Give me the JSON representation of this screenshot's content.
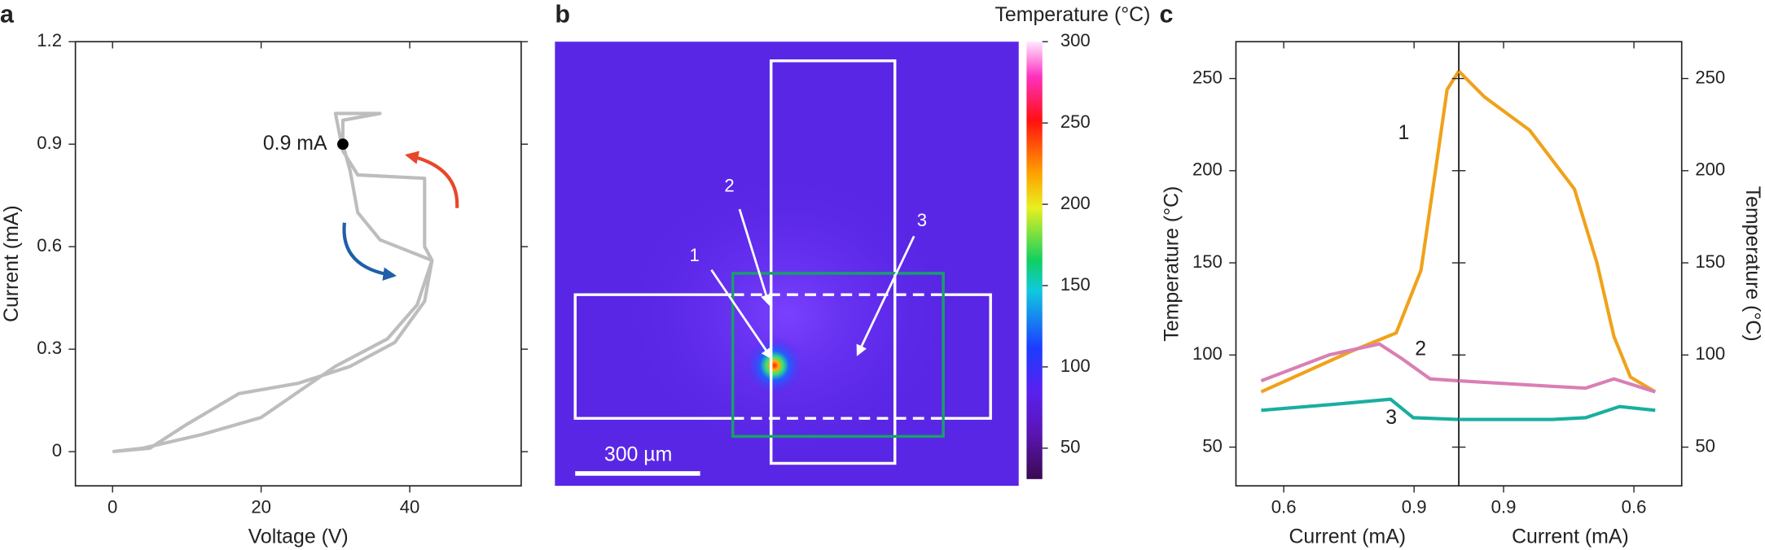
{
  "chart_data": [
    {
      "type": "line",
      "panel_label": "a",
      "xlabel": "Voltage (V)",
      "ylabel": "Current (mA)",
      "xlim": [
        -5,
        55
      ],
      "xticks": [
        0,
        20,
        40
      ],
      "ylim": [
        -0.1,
        1.2
      ],
      "yticks": [
        0,
        0.3,
        0.6,
        0.9,
        1.2
      ],
      "y_axis_side": "left",
      "series": [
        {
          "color": "#bdbdbd",
          "x": [
            0,
            5,
            10,
            17,
            25,
            32,
            38,
            42,
            43,
            42,
            42,
            33,
            31,
            30,
            36,
            31,
            31,
            32,
            33,
            36,
            43,
            41,
            37,
            30,
            20,
            12,
            4,
            0
          ],
          "values": [
            0,
            0.01,
            0.08,
            0.17,
            0.2,
            0.25,
            0.32,
            0.44,
            0.56,
            0.6,
            0.8,
            0.81,
            0.88,
            0.99,
            0.99,
            0.97,
            0.9,
            0.82,
            0.7,
            0.62,
            0.56,
            0.43,
            0.33,
            0.25,
            0.1,
            0.05,
            0.01,
            0
          ]
        }
      ],
      "annotation": {
        "text": "0.9 mA",
        "x": 31,
        "y": 0.9
      }
    },
    {
      "type": "heatmap",
      "panel_label": "b",
      "colorbar_label": "Temperature (°C)",
      "clim": [
        31,
        300
      ],
      "colorbar_ticks": [
        50,
        100,
        150,
        200,
        250,
        300
      ],
      "annotations": [
        "1",
        "2",
        "3"
      ],
      "scale_bar": "300 µm"
    },
    {
      "type": "line",
      "panel_label": "c",
      "xlabel": "Current (mA)",
      "ylabel": "Temperature (°C)",
      "xlim": [
        0.49,
        1.003
      ],
      "xticks": [
        0.6,
        0.9
      ],
      "ylim": [
        29,
        270
      ],
      "yticks": [
        50,
        100,
        150,
        200,
        250
      ],
      "y_axis_side": "left",
      "series": [
        {
          "name": "1",
          "color": "#f0a21a",
          "x": [
            0.548,
            0.755,
            0.859,
            0.916,
            0.95,
            0.976,
            1.003
          ],
          "values": [
            80,
            102,
            112,
            146,
            201,
            244,
            254
          ]
        },
        {
          "name": "2",
          "color": "#d97fb4",
          "x": [
            0.548,
            0.704,
            0.82,
            0.872,
            0.937,
            1.003
          ],
          "values": [
            86,
            100,
            106,
            98,
            87,
            86
          ]
        },
        {
          "name": "3",
          "color": "#1aaea0",
          "x": [
            0.548,
            0.704,
            0.846,
            0.898,
            1.003
          ],
          "values": [
            70,
            73,
            76,
            66,
            65
          ]
        }
      ]
    },
    {
      "type": "line",
      "xlabel": "Current (mA)",
      "ylabel": "Temperature (°C)",
      "xlim": [
        1.003,
        0.49
      ],
      "xticks": [
        0.9,
        0.6
      ],
      "ylim": [
        29,
        270
      ],
      "yticks": [
        50,
        100,
        150,
        200,
        250
      ],
      "y_axis_side": "right",
      "series": [
        {
          "color": "#f0a21a",
          "x": [
            1.003,
            0.944,
            0.84,
            0.737,
            0.685,
            0.646,
            0.608,
            0.551
          ],
          "values": [
            254,
            240,
            222,
            190,
            150,
            110,
            88,
            80
          ]
        },
        {
          "color": "#d97fb4",
          "x": [
            1.003,
            0.789,
            0.711,
            0.646,
            0.551
          ],
          "values": [
            86,
            83,
            82,
            87,
            80
          ]
        },
        {
          "color": "#1aaea0",
          "x": [
            1.003,
            0.789,
            0.711,
            0.633,
            0.551
          ],
          "values": [
            65,
            65,
            66,
            72,
            70
          ]
        }
      ]
    }
  ]
}
